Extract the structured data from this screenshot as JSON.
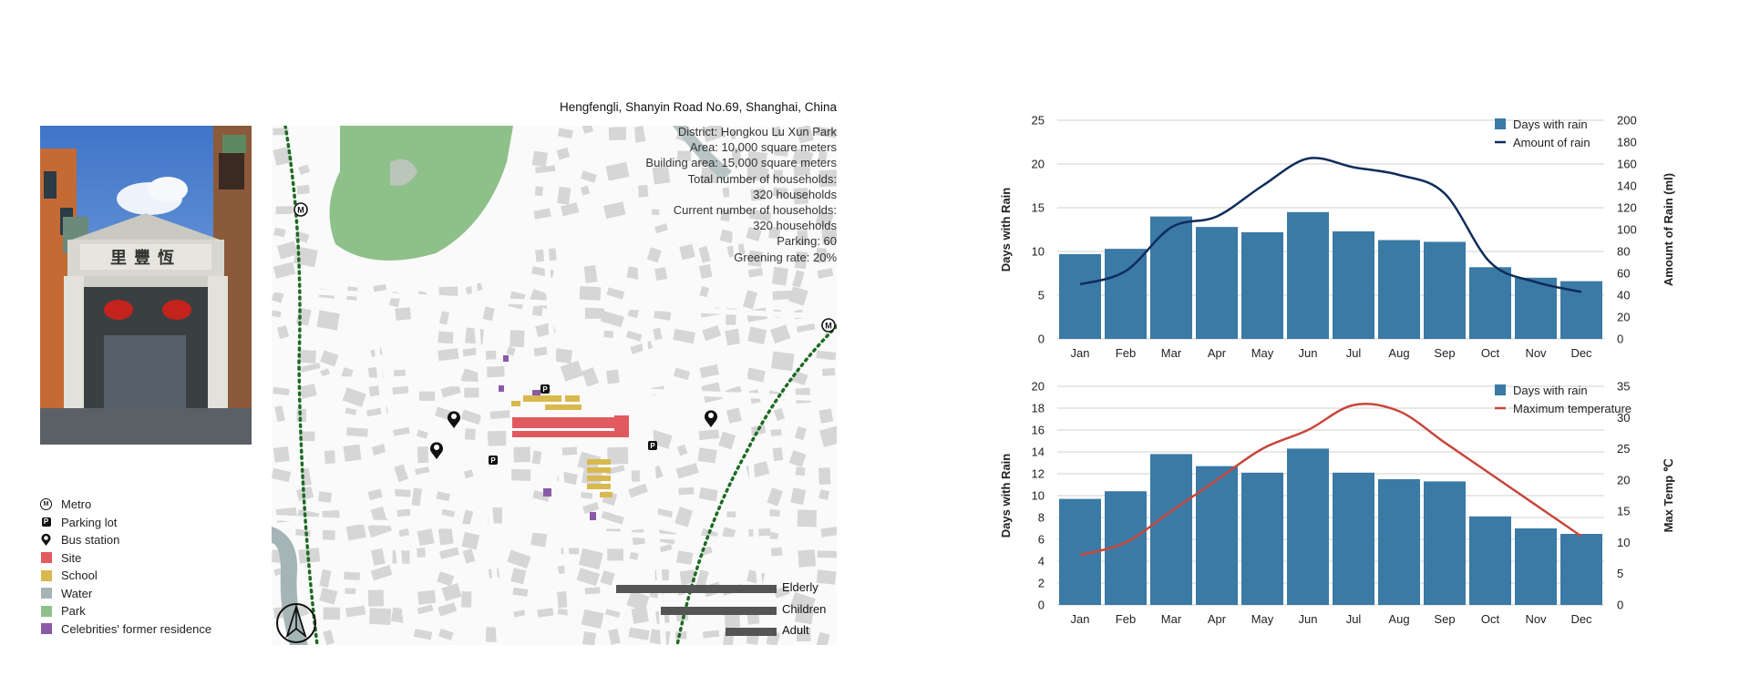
{
  "map": {
    "title": "Hengfengli, Shanyin Road No.69, Shanghai, China",
    "info_lines": [
      "District: Hongkou Lu Xun Park",
      "Area: 10,000 square meters",
      "Building area: 15,000 square meters",
      "Total number of households:",
      "320 households",
      "Current number of households:",
      "320 households",
      "Parking: 60",
      "Greening rate: 20%"
    ],
    "age_groups": [
      {
        "label": "Elderly",
        "share": 1.0
      },
      {
        "label": "Children",
        "share": 0.72
      },
      {
        "label": "Adult",
        "share": 0.32
      }
    ],
    "metro_glyph": "M",
    "parking_glyph": "P",
    "gate_sign": "里豐恆"
  },
  "legend": [
    {
      "label": "Metro",
      "icon": "metro-icon"
    },
    {
      "label": "Parking lot",
      "icon": "parking-icon"
    },
    {
      "label": "Bus station",
      "icon": "bus-station-icon"
    },
    {
      "label": "Site",
      "color": "#e05a5f"
    },
    {
      "label": "School",
      "color": "#d9b84d"
    },
    {
      "label": "Water",
      "color": "#a5b5b5"
    },
    {
      "label": "Park",
      "color": "#8ec08a"
    },
    {
      "label": "Celebrities' former residence",
      "color": "#8a5aa8"
    }
  ],
  "colors": {
    "bar": "#3a7aa5",
    "rain_line": "#0e2c5a",
    "temp_line": "#c8463c",
    "site": "#e05a5f",
    "school": "#d9b84d",
    "water": "#a5b5b5",
    "park": "#8ec08a",
    "residence": "#8a5aa8",
    "railway": "#1e6a24",
    "building": "#d6d6d6"
  },
  "chart_data": [
    {
      "type": "bar",
      "categories": [
        "Jan",
        "Feb",
        "Mar",
        "Apr",
        "May",
        "Jun",
        "Jul",
        "Aug",
        "Sep",
        "Oct",
        "Nov",
        "Dec"
      ],
      "series": [
        {
          "name": "Days with rain",
          "type": "bar",
          "axis": "left",
          "values": [
            9.7,
            10.3,
            14.0,
            12.8,
            12.2,
            14.5,
            12.3,
            11.3,
            11.1,
            8.2,
            7.0,
            6.6
          ]
        },
        {
          "name": "Amount of rain",
          "type": "line",
          "axis": "right",
          "values": [
            50,
            62,
            102,
            112,
            140,
            165,
            157,
            150,
            133,
            70,
            52,
            43
          ]
        }
      ],
      "ylabel": "Days with Rain",
      "y2label": "Amount of Rain (ml)",
      "ylim": [
        0,
        25
      ],
      "yticks": [
        0,
        5,
        10,
        15,
        20,
        25
      ],
      "y2lim": [
        0,
        200
      ],
      "y2ticks": [
        0,
        20,
        40,
        60,
        80,
        100,
        120,
        140,
        160,
        180,
        200
      ],
      "grid": true,
      "legend": "top-right"
    },
    {
      "type": "bar",
      "categories": [
        "Jan",
        "Feb",
        "Mar",
        "Apr",
        "May",
        "Jun",
        "Jul",
        "Aug",
        "Sep",
        "Oct",
        "Nov",
        "Dec"
      ],
      "series": [
        {
          "name": "Days with rain",
          "type": "bar",
          "axis": "left",
          "values": [
            9.7,
            10.4,
            13.8,
            12.7,
            12.1,
            14.3,
            12.1,
            11.5,
            11.3,
            8.1,
            7.0,
            6.5
          ]
        },
        {
          "name": "Maximum temperature",
          "type": "line",
          "axis": "right",
          "values": [
            8,
            10,
            15,
            20,
            25,
            28,
            32,
            31,
            26,
            21,
            16,
            11
          ]
        }
      ],
      "ylabel": "Days with Rain",
      "y2label": "Max Temp ℃",
      "ylim": [
        0,
        20
      ],
      "yticks": [
        0,
        2,
        4,
        6,
        8,
        10,
        12,
        14,
        16,
        18,
        20
      ],
      "y2lim": [
        0,
        35
      ],
      "y2ticks": [
        0,
        5,
        10,
        15,
        20,
        25,
        30,
        35
      ],
      "grid": true,
      "legend": "top-right"
    }
  ]
}
